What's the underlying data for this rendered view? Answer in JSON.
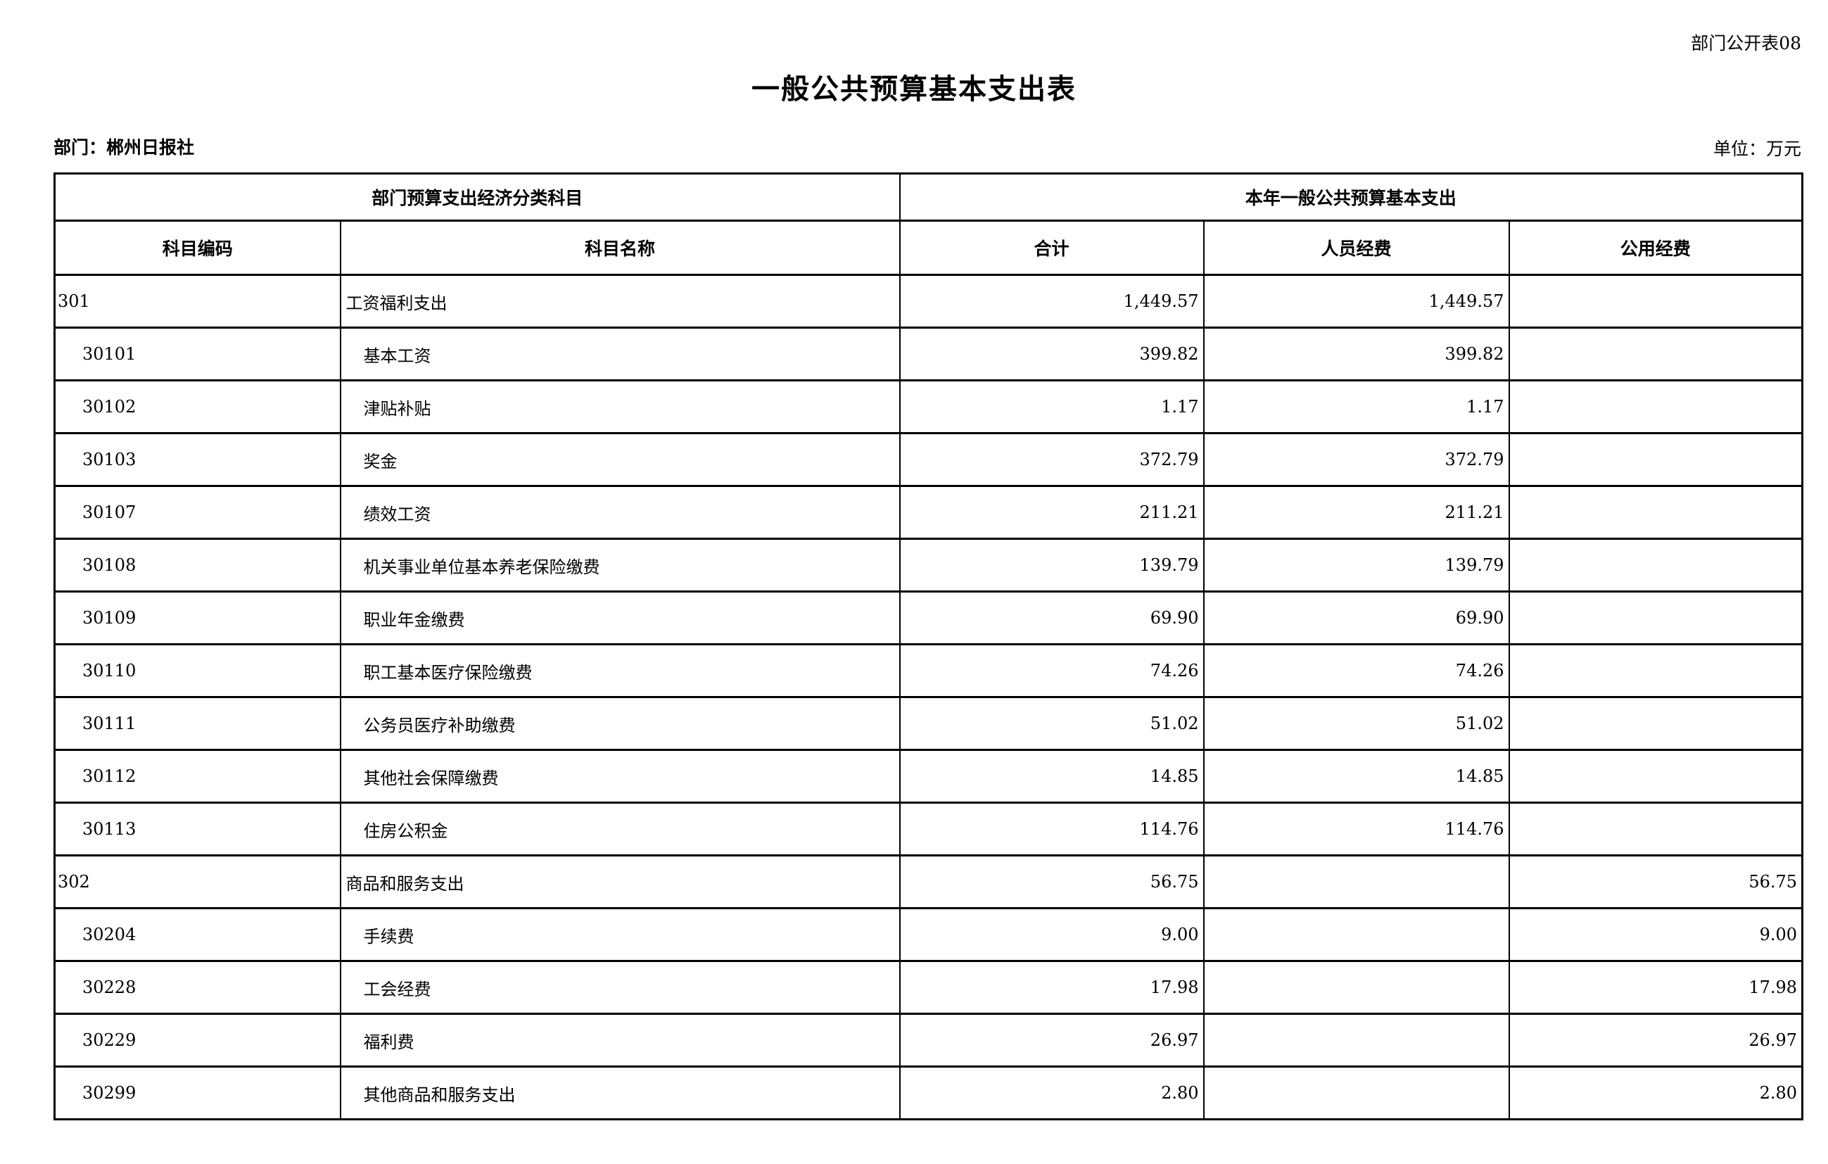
{
  "page": {
    "doc_tag": "部门公开表08",
    "title": "一般公共预算基本支出表",
    "department_label": "部门：郴州日报社",
    "unit_label": "单位：万元"
  },
  "table": {
    "group_headers": {
      "classification": "部门预算支出经济分类科目",
      "current_year": "本年一般公共预算基本支出"
    },
    "columns": {
      "subject_code": "科目编码",
      "subject_name": "科目名称",
      "total": "合计",
      "personnel_funds": "人员经费",
      "public_funds": "公用经费"
    },
    "rows": [
      {
        "code": "301",
        "name": "工资福利支出",
        "total": "1,449.57",
        "personnel": "1,449.57",
        "public": "",
        "level": 1
      },
      {
        "code": "30101",
        "name": "基本工资",
        "total": "399.82",
        "personnel": "399.82",
        "public": "",
        "level": 2
      },
      {
        "code": "30102",
        "name": "津贴补贴",
        "total": "1.17",
        "personnel": "1.17",
        "public": "",
        "level": 2
      },
      {
        "code": "30103",
        "name": "奖金",
        "total": "372.79",
        "personnel": "372.79",
        "public": "",
        "level": 2
      },
      {
        "code": "30107",
        "name": "绩效工资",
        "total": "211.21",
        "personnel": "211.21",
        "public": "",
        "level": 2
      },
      {
        "code": "30108",
        "name": "机关事业单位基本养老保险缴费",
        "total": "139.79",
        "personnel": "139.79",
        "public": "",
        "level": 2
      },
      {
        "code": "30109",
        "name": "职业年金缴费",
        "total": "69.90",
        "personnel": "69.90",
        "public": "",
        "level": 2
      },
      {
        "code": "30110",
        "name": "职工基本医疗保险缴费",
        "total": "74.26",
        "personnel": "74.26",
        "public": "",
        "level": 2
      },
      {
        "code": "30111",
        "name": "公务员医疗补助缴费",
        "total": "51.02",
        "personnel": "51.02",
        "public": "",
        "level": 2
      },
      {
        "code": "30112",
        "name": "其他社会保障缴费",
        "total": "14.85",
        "personnel": "14.85",
        "public": "",
        "level": 2
      },
      {
        "code": "30113",
        "name": "住房公积金",
        "total": "114.76",
        "personnel": "114.76",
        "public": "",
        "level": 2
      },
      {
        "code": "302",
        "name": "商品和服务支出",
        "total": "56.75",
        "personnel": "",
        "public": "56.75",
        "level": 1
      },
      {
        "code": "30204",
        "name": "手续费",
        "total": "9.00",
        "personnel": "",
        "public": "9.00",
        "level": 2
      },
      {
        "code": "30228",
        "name": "工会经费",
        "total": "17.98",
        "personnel": "",
        "public": "17.98",
        "level": 2
      },
      {
        "code": "30229",
        "name": "福利费",
        "total": "26.97",
        "personnel": "",
        "public": "26.97",
        "level": 2
      },
      {
        "code": "30299",
        "name": "其他商品和服务支出",
        "total": "2.80",
        "personnel": "",
        "public": "2.80",
        "level": 2
      }
    ]
  }
}
